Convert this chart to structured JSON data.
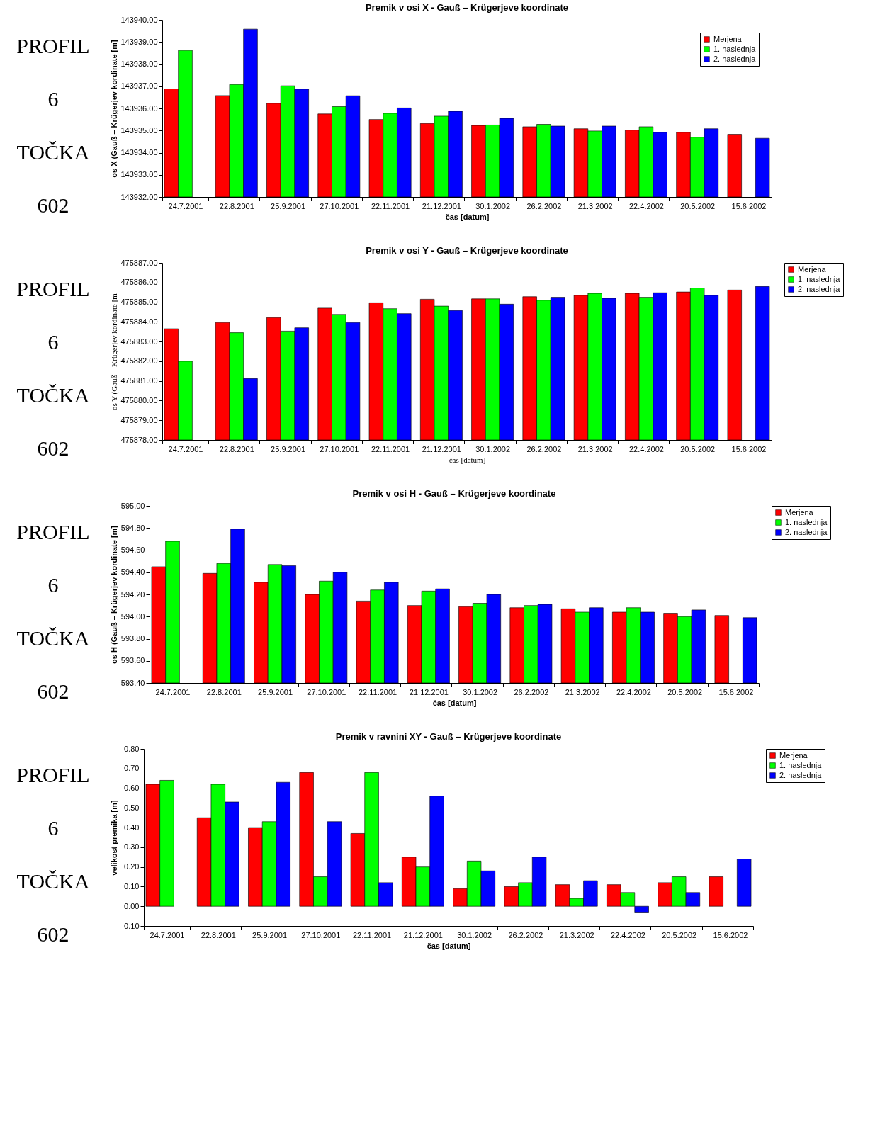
{
  "chart_data": [
    {
      "type": "other",
      "annotations": [
        "PROFIL",
        "6",
        "TOČKA",
        "602"
      ]
    },
    {
      "type": "bar",
      "title": "Premik v osi X - Gauß – Krügerjeve koordinate",
      "xlabel": "čas [datum]",
      "ylabel": "os X (Gauß – Krügerjev kordinate [m]",
      "legend": "top right",
      "categories": [
        "24.7.2001",
        "22.8.2001",
        "25.9.2001",
        "27.10.2001",
        "22.11.2001",
        "21.12.2001",
        "30.1.2002",
        "26.2.2002",
        "21.3.2002",
        "22.4.2002",
        "20.5.2002",
        "15.6.2002"
      ],
      "ylim": [
        143932,
        143940
      ],
      "yticks": [
        {
          "value": 143932,
          "label": "143932.00"
        },
        {
          "value": 143933,
          "label": "143933.00"
        },
        {
          "value": 143934,
          "label": "143934.00"
        },
        {
          "value": 143935,
          "label": "143935.00"
        },
        {
          "value": 143936,
          "label": "143936.00"
        },
        {
          "value": 143937,
          "label": "143937.00"
        },
        {
          "value": 143938,
          "label": "143938.00"
        },
        {
          "value": 143939,
          "label": "143939.00"
        },
        {
          "value": 143940,
          "label": "143940.00"
        }
      ],
      "series": [
        {
          "name": "Merjena",
          "color": "#ff0000",
          "values": [
            143936.88,
            143936.58,
            143936.23,
            143935.75,
            143935.5,
            143935.32,
            143935.23,
            143935.17,
            143935.08,
            143935.02,
            143934.92,
            143934.83
          ]
        },
        {
          "name": "1. naslednja",
          "color": "#00ff00",
          "values": [
            143938.62,
            143937.08,
            143937.02,
            143936.08,
            143935.78,
            143935.65,
            143935.25,
            143935.28,
            143934.98,
            143935.17,
            143934.7,
            null
          ]
        },
        {
          "name": "2. naslednja",
          "color": "#0000ff",
          "values": [
            null,
            143939.58,
            143936.87,
            143936.57,
            143936.02,
            143935.87,
            143935.55,
            143935.2,
            143935.2,
            143934.92,
            143935.08,
            143934.65
          ]
        }
      ]
    },
    {
      "type": "other",
      "annotations": [
        "PROFIL",
        "6",
        "TOČKA",
        "602"
      ]
    },
    {
      "type": "bar",
      "title": "Premik v osi Y - Gauß – Krügerjeve koordinate",
      "xlabel": "čas [datum]",
      "ylabel": "os Y (Gauß – Krügerjev kordinate [m",
      "legend": "right",
      "categories": [
        "24.7.2001",
        "22.8.2001",
        "25.9.2001",
        "27.10.2001",
        "22.11.2001",
        "21.12.2001",
        "30.1.2002",
        "26.2.2002",
        "21.3.2002",
        "22.4.2002",
        "20.5.2002",
        "15.6.2002"
      ],
      "ylim": [
        475878,
        475887
      ],
      "yticks": [
        {
          "value": 475878,
          "label": "475878.00"
        },
        {
          "value": 475879,
          "label": "475879.00"
        },
        {
          "value": 475880,
          "label": "475880.00"
        },
        {
          "value": 475881,
          "label": "475881.00"
        },
        {
          "value": 475882,
          "label": "475882.00"
        },
        {
          "value": 475883,
          "label": "475883.00"
        },
        {
          "value": 475884,
          "label": "475884.00"
        },
        {
          "value": 475885,
          "label": "475885.00"
        },
        {
          "value": 475886,
          "label": "475886.00"
        },
        {
          "value": 475887,
          "label": "475887.00"
        }
      ],
      "series": [
        {
          "name": "Merjena",
          "color": "#ff0000",
          "values": [
            475883.65,
            475883.97,
            475884.22,
            475884.7,
            475884.97,
            475885.15,
            475885.17,
            475885.28,
            475885.35,
            475885.45,
            475885.52,
            475885.62
          ]
        },
        {
          "name": "1. naslednja",
          "color": "#00ff00",
          "values": [
            475882.0,
            475883.45,
            475883.53,
            475884.38,
            475884.67,
            475884.8,
            475885.17,
            475885.1,
            475885.45,
            475885.25,
            475885.72,
            null
          ]
        },
        {
          "name": "2. naslednja",
          "color": "#0000ff",
          "values": [
            null,
            475881.12,
            475883.7,
            475883.97,
            475884.42,
            475884.58,
            475884.9,
            475885.25,
            475885.2,
            475885.48,
            475885.35,
            475885.8
          ]
        }
      ]
    },
    {
      "type": "other",
      "annotations": [
        "PROFIL",
        "6",
        "TOČKA",
        "602"
      ]
    },
    {
      "type": "bar",
      "title": "Premik v osi H - Gauß – Krügerjeve koordinate",
      "xlabel": "čas [datum]",
      "ylabel": "os H (Gauß – Krügerjev kordinate [m]",
      "legend": "right",
      "categories": [
        "24.7.2001",
        "22.8.2001",
        "25.9.2001",
        "27.10.2001",
        "22.11.2001",
        "21.12.2001",
        "30.1.2002",
        "26.2.2002",
        "21.3.2002",
        "22.4.2002",
        "20.5.2002",
        "15.6.2002"
      ],
      "ylim": [
        593.4,
        595.0
      ],
      "yticks": [
        {
          "value": 593.4,
          "label": "593.40"
        },
        {
          "value": 593.6,
          "label": "593.60"
        },
        {
          "value": 593.8,
          "label": "593.80"
        },
        {
          "value": 594,
          "label": "594.00"
        },
        {
          "value": 594.2,
          "label": "594.20"
        },
        {
          "value": 594.4,
          "label": "594.40"
        },
        {
          "value": 594.6,
          "label": "594.60"
        },
        {
          "value": 594.8,
          "label": "594.80"
        },
        {
          "value": 595,
          "label": "595.00"
        }
      ],
      "series": [
        {
          "name": "Merjena",
          "color": "#ff0000",
          "values": [
            594.45,
            594.39,
            594.31,
            594.2,
            594.14,
            594.1,
            594.09,
            594.08,
            594.07,
            594.04,
            594.03,
            594.01
          ]
        },
        {
          "name": "1. naslednja",
          "color": "#00ff00",
          "values": [
            594.68,
            594.48,
            594.47,
            594.32,
            594.24,
            594.23,
            594.12,
            594.1,
            594.04,
            594.08,
            594.0,
            null
          ]
        },
        {
          "name": "2. naslednja",
          "color": "#0000ff",
          "values": [
            null,
            594.79,
            594.46,
            594.4,
            594.31,
            594.25,
            594.2,
            594.11,
            594.08,
            594.04,
            594.06,
            593.99
          ]
        }
      ]
    },
    {
      "type": "other",
      "annotations": [
        "PROFIL",
        "6",
        "TOČKA",
        "602"
      ]
    },
    {
      "type": "bar",
      "title": "Premik v ravnini XY - Gauß – Krügerjeve koordinate",
      "xlabel": "čas [datum]",
      "ylabel": "velikost premika [m]",
      "legend": "right",
      "categories": [
        "24.7.2001",
        "22.8.2001",
        "25.9.2001",
        "27.10.2001",
        "22.11.2001",
        "21.12.2001",
        "30.1.2002",
        "26.2.2002",
        "21.3.2002",
        "22.4.2002",
        "20.5.2002",
        "15.6.2002"
      ],
      "ylim": [
        -0.1,
        0.8
      ],
      "yticks": [
        {
          "value": -0.1,
          "label": "-0.10"
        },
        {
          "value": 0,
          "label": "0.00"
        },
        {
          "value": 0.1,
          "label": "0.10"
        },
        {
          "value": 0.2,
          "label": "0.20"
        },
        {
          "value": 0.3,
          "label": "0.30"
        },
        {
          "value": 0.4,
          "label": "0.40"
        },
        {
          "value": 0.5,
          "label": "0.50"
        },
        {
          "value": 0.6,
          "label": "0.60"
        },
        {
          "value": 0.7,
          "label": "0.70"
        },
        {
          "value": 0.8,
          "label": "0.80"
        }
      ],
      "series": [
        {
          "name": "Merjena",
          "color": "#ff0000",
          "values": [
            0.62,
            0.45,
            0.4,
            0.68,
            0.37,
            0.25,
            0.09,
            0.1,
            0.11,
            0.11,
            0.12,
            0.15
          ]
        },
        {
          "name": "1. naslednja",
          "color": "#00ff00",
          "values": [
            0.64,
            0.62,
            0.43,
            0.15,
            0.68,
            0.2,
            0.23,
            0.12,
            0.04,
            0.07,
            0.15,
            null
          ]
        },
        {
          "name": "2. naslednja",
          "color": "#0000ff",
          "values": [
            null,
            0.53,
            0.63,
            0.43,
            0.12,
            0.56,
            0.18,
            0.25,
            0.13,
            -0.03,
            0.07,
            0.24
          ]
        }
      ]
    }
  ]
}
